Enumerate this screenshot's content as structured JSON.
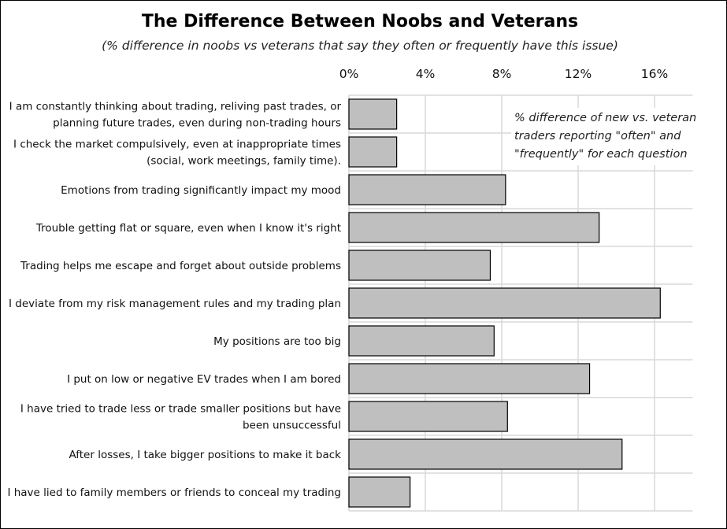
{
  "chart_data": {
    "type": "bar",
    "orientation": "horizontal",
    "title": "The Difference Between Noobs and Veterans",
    "subtitle": "(% difference in noobs vs veterans that say they often or frequently have this issue)",
    "annotation": "% difference of new vs. veteran traders reporting \"often\" and \"frequently\" for each question",
    "categories": [
      "I am constantly thinking about trading, reliving past trades, or planning future trades, even during non-trading hours",
      "I check the market compulsively, even at inappropriate times (social, work meetings, family time).",
      "Emotions from trading significantly impact my mood",
      "Trouble getting flat or square, even when I know it's right",
      "Trading helps me escape and forget about outside problems",
      "I deviate from my risk management rules and my trading plan",
      "My positions are too big",
      "I put on low or negative EV trades when I am bored",
      "I have tried to trade less or trade smaller positions but have been unsuccessful",
      "After losses, I take bigger positions to make it back",
      "I have lied to family members or friends to conceal my trading"
    ],
    "category_lines": [
      [
        "I am constantly thinking about trading, reliving past trades, or",
        "planning future trades, even during non-trading hours"
      ],
      [
        "I check the market compulsively, even at inappropriate times",
        "(social, work meetings, family time)."
      ],
      [
        "Emotions from trading significantly impact my mood"
      ],
      [
        "Trouble getting flat or square, even when I know it's right"
      ],
      [
        "Trading helps me escape and forget about outside problems"
      ],
      [
        "I deviate from my risk management rules and my trading plan"
      ],
      [
        "My positions are too big"
      ],
      [
        "I put on low or negative EV trades when I am bored"
      ],
      [
        "I have tried to trade less or trade smaller positions but have",
        "been unsuccessful"
      ],
      [
        "After losses, I take bigger positions to make it back"
      ],
      [
        "I have lied to family members or friends to conceal my trading"
      ]
    ],
    "values": [
      2.5,
      2.5,
      8.2,
      13.1,
      7.4,
      16.3,
      7.6,
      12.6,
      8.3,
      14.3,
      3.2
    ],
    "xlabel": "",
    "ylabel": "",
    "xlim": [
      0,
      18
    ],
    "xticks": [
      0,
      4,
      8,
      12,
      16
    ],
    "xtick_labels": [
      "0%",
      "4%",
      "8%",
      "12%",
      "16%"
    ],
    "xaxis_position": "top",
    "grid": true,
    "bar_color": "#bfbfbf",
    "bar_edge_color": "#000000",
    "grid_color": "#d9d9d9"
  }
}
